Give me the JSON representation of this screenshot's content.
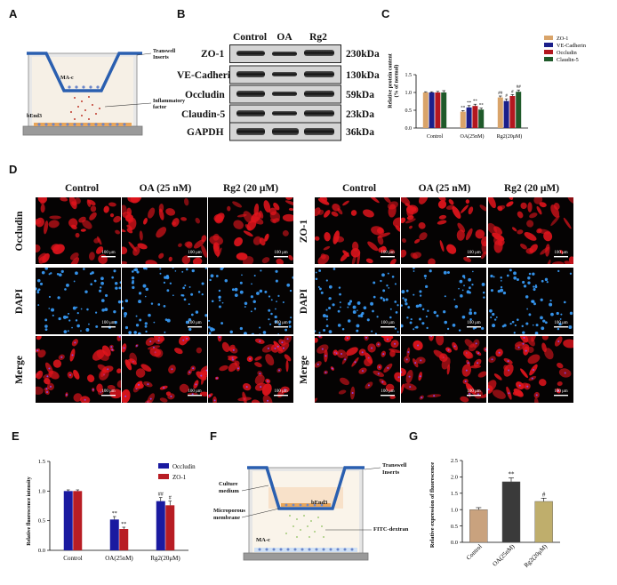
{
  "panels": {
    "A": "A",
    "B": "B",
    "C": "C",
    "D": "D",
    "E": "E",
    "F": "F",
    "G": "G"
  },
  "panel_a": {
    "cell_top": "MA-c",
    "cell_bottom": "bEnd3",
    "transwell": "Transwell\nInserts",
    "inflammatory": "Inflammatory\nfactor"
  },
  "panel_b": {
    "columns": [
      "Control",
      "OA",
      "Rg2"
    ],
    "rows": [
      {
        "name": "ZO-1",
        "kda": "230kDa"
      },
      {
        "name": "VE-Cadherin",
        "kda": "130kDa"
      },
      {
        "name": "Occludin",
        "kda": "59kDa"
      },
      {
        "name": "Claudin-5",
        "kda": "23kDa"
      },
      {
        "name": "GAPDH",
        "kda": "36kDa"
      }
    ]
  },
  "panel_d": {
    "left_columns": [
      "Control",
      "OA (25 nM)",
      "Rg2 (20 μM)"
    ],
    "right_columns": [
      "Control",
      "OA (25 nM)",
      "Rg2 (20 μM)"
    ],
    "left_rows": [
      "Occludin",
      "DAPI",
      "Merge"
    ],
    "right_rows": [
      "ZO-1",
      "DAPI",
      "Merge"
    ],
    "scale": "100 μm"
  },
  "panel_f": {
    "culture": "Culture\nmedium",
    "micro": "Microporous\nmembrane",
    "bend3": "bEnd3",
    "mac": "MA-c",
    "transwell": "Transwell\nInserts",
    "fitc": "FITC-dextran"
  },
  "colors": {
    "zo1": "#d9a46a",
    "ve": "#1b1f8a",
    "occ": "#b3171f",
    "cla": "#1f5a2a",
    "e_occ": "#1a1aa0",
    "e_zo": "#b81d24",
    "g_ctrl": "#c9a27e",
    "g_oa": "#3a3a3a",
    "g_rg": "#bfae6c"
  },
  "chart_data": [
    {
      "id": "C",
      "type": "bar",
      "categories": [
        "Control",
        "OA(25nM)",
        "Rg2(20μM)"
      ],
      "series": [
        {
          "name": "ZO-1",
          "values": [
            1.0,
            0.46,
            0.86
          ],
          "err": [
            0.02,
            0.03,
            0.04
          ],
          "marks": [
            "",
            "**",
            "##"
          ]
        },
        {
          "name": "VE-Cadherin",
          "values": [
            1.0,
            0.58,
            0.76
          ],
          "err": [
            0.02,
            0.05,
            0.06
          ],
          "marks": [
            "",
            "**",
            "#"
          ]
        },
        {
          "name": "Occludin",
          "values": [
            1.0,
            0.62,
            0.9
          ],
          "err": [
            0.03,
            0.05,
            0.04
          ],
          "marks": [
            "",
            "**",
            "#"
          ]
        },
        {
          "name": "Claudin-5",
          "values": [
            1.0,
            0.52,
            1.02
          ],
          "err": [
            0.05,
            0.04,
            0.05
          ],
          "marks": [
            "",
            "**",
            "##"
          ]
        }
      ],
      "ylabel": "Relative protein content\n(% of normal)",
      "ylim": [
        0,
        1.5
      ],
      "yticks": [
        "0.0",
        "0.5",
        "1.0",
        "1.5"
      ]
    },
    {
      "id": "E",
      "type": "bar",
      "categories": [
        "Control",
        "OA(25nM)",
        "Rg2(20μM)"
      ],
      "series": [
        {
          "name": "Occludin",
          "values": [
            1.0,
            0.52,
            0.83
          ],
          "err": [
            0.02,
            0.05,
            0.06
          ],
          "marks": [
            "",
            "**",
            "##"
          ]
        },
        {
          "name": "ZO-1",
          "values": [
            1.0,
            0.36,
            0.76
          ],
          "err": [
            0.02,
            0.03,
            0.07
          ],
          "marks": [
            "",
            "**",
            "#"
          ]
        }
      ],
      "ylabel": "Relative fluorescence intensity",
      "ylim": [
        0,
        1.5
      ],
      "yticks": [
        "0.0",
        "0.5",
        "1.0",
        "1.5"
      ]
    },
    {
      "id": "G",
      "type": "bar",
      "categories": [
        "Control",
        "OA(25nM)",
        "Rg2(20μM)"
      ],
      "series": [
        {
          "name": "",
          "values": [
            1.0,
            1.85,
            1.25
          ],
          "err": [
            0.06,
            0.12,
            0.1
          ],
          "marks": [
            "",
            "**",
            "#"
          ]
        }
      ],
      "ylabel": "Relative expression of fluorescence",
      "ylim": [
        0,
        2.5
      ],
      "yticks": [
        "0.0",
        "0.5",
        "1.0",
        "1.5",
        "2.0",
        "2.5"
      ]
    }
  ]
}
